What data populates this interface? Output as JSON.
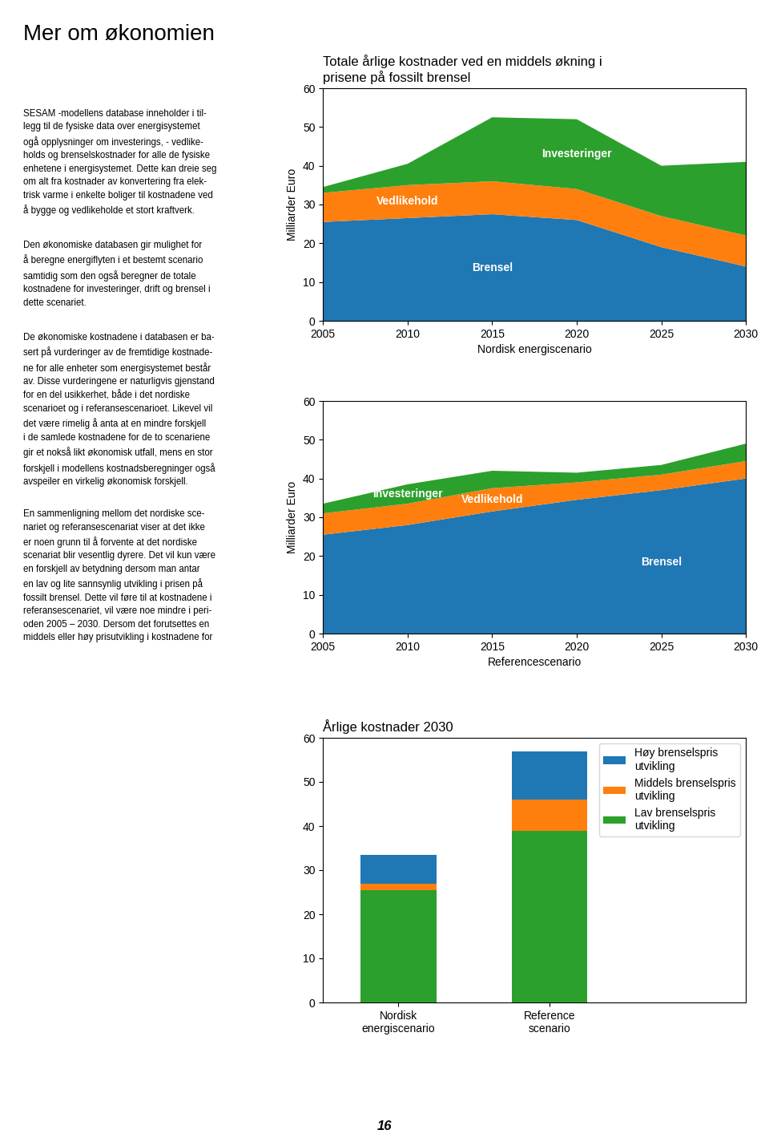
{
  "title": "Mer om økonomien",
  "annotations": [
    "SESAM -modellens database inneholder i til-\nlegg til de fysiske data over energisystemet\nogå opplysninger om investerings, - vedlike-\nholds og brenselskostnader for alle de fysiske\nenhetene i energisystemet. Dette kan dreie seg\nom alt fra kostnader av konvertering fra elek-\ntrisk varme i enkelte boliger til kostnadene ved\nå bygge og vedlikeholde et stort kraftverk.",
    "Den økonomiske databasen gir mulighet for\nå beregne energiflyten i et bestemt scenario\nsamtidig som den også beregner de totale\nkostnadene for investeringer, drift og brensel i\ndette scenariet.",
    "De økonomiske kostnadene i databasen er ba-\nsert på vurderinger av de fremtidige kostnade-\nne for alle enheter som energisystemet består\nav. Disse vurderingene er naturligvis gjenstand\nfor en del usikkerhet, både i det nordiske\nscenarioet og i referansescenarioet. Likevel vil\ndet være rimelig å anta at en mindre forskjell\ni de samlede kostnadene for de to scenariene\ngir et nokså likt økonomisk utfall, mens en stor\nforskjell i modellens kostnadsberegninger også\navspeiler en virkelig økonomisk forskjell.",
    "En sammenligning mellom det nordiske sce-\nnariet og referansescenariat viser at det ikke\ner noen grunn til å forvente at det nordiske\nscenariat blir vesentlig dyrere. Det vil kun være\nen forskjell av betydning dersom man antar\nen lav og lite sannsynlig utvikling i prisen på\nfossilt brensel. Dette vil føre til at kostnadene i\nreferansescenariet, vil være noe mindre i peri-\noden 2005 – 2030. Dersom det forutsettes en\nmiddels eller høy prisutvikling i kostnadene for",
    "16"
  ],
  "chart_data": [
    {
      "type": "area",
      "stacked": true,
      "title": "Totale årlige kostnader ved en middels økning i\nprisene på fossilt brensel",
      "x_label": "Nordisk energiscenario",
      "y_label": "Milliarder Euro",
      "x": [
        2005,
        2010,
        2015,
        2020,
        2025,
        2030
      ],
      "xlim": [
        2005,
        2030
      ],
      "xticks": [
        2005,
        2010,
        2015,
        2020,
        2025,
        2030
      ],
      "ylim": [
        0,
        60
      ],
      "yticks": [
        0,
        10,
        20,
        30,
        40,
        50,
        60
      ],
      "series": [
        {
          "name": "Brensel",
          "values": [
            25.5,
            26.5,
            27.5,
            26.0,
            19.0,
            14.0
          ]
        },
        {
          "name": "Vedlikehold",
          "values": [
            7.5,
            8.5,
            8.5,
            8.0,
            8.0,
            8.0
          ]
        },
        {
          "name": "Investeringer",
          "values": [
            1.5,
            5.5,
            16.5,
            18.0,
            13.0,
            19.0
          ]
        }
      ]
    },
    {
      "type": "area",
      "stacked": true,
      "x_label": "Referencescenario",
      "y_label": "Milliarder Euro",
      "x": [
        2005,
        2010,
        2015,
        2020,
        2025,
        2030
      ],
      "xlim": [
        2005,
        2030
      ],
      "xticks": [
        2005,
        2010,
        2015,
        2020,
        2025,
        2030
      ],
      "ylim": [
        0,
        60
      ],
      "yticks": [
        0,
        10,
        20,
        30,
        40,
        50,
        60
      ],
      "series": [
        {
          "name": "Brensel",
          "values": [
            25.5,
            28.0,
            31.5,
            34.5,
            37.0,
            40.0
          ]
        },
        {
          "name": "Vedlikehold",
          "values": [
            5.5,
            5.5,
            6.0,
            4.5,
            4.0,
            4.5
          ]
        },
        {
          "name": "Investeringer",
          "values": [
            2.5,
            5.0,
            4.5,
            2.5,
            2.5,
            4.5
          ]
        }
      ]
    },
    {
      "type": "bar",
      "stacked": false,
      "title": "Årlige kostnader 2030",
      "categories": [
        "Nordisk\nenergiscenario",
        "Reference\nscenario"
      ],
      "ylim": [
        0,
        60
      ],
      "yticks": [
        0,
        10,
        20,
        30,
        40,
        50,
        60
      ],
      "legend": "upper right",
      "series": [
        {
          "name": "Høy brenselspris\nutvikling",
          "values": [
            33.5,
            57.0
          ]
        },
        {
          "name": "Middels brenselspris\nutvikling",
          "values": [
            27.0,
            46.0
          ]
        },
        {
          "name": "Lav brenselspris\nutvikling",
          "values": [
            25.5,
            39.0
          ]
        }
      ]
    }
  ]
}
